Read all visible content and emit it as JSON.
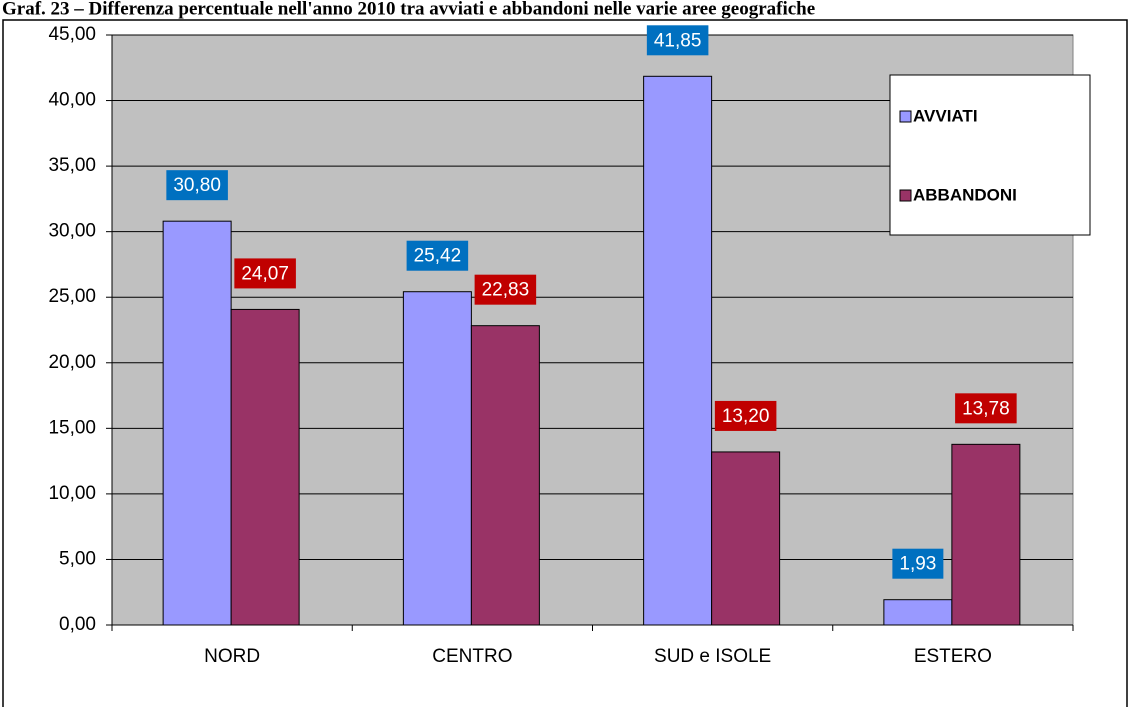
{
  "chart_data": {
    "type": "bar",
    "title": "Graf. 23 – Differenza percentuale nell'anno 2010 tra avviati e abbandoni nelle varie aree geografiche",
    "categories": [
      "NORD",
      "CENTRO",
      "SUD e ISOLE",
      "ESTERO"
    ],
    "series": [
      {
        "name": "AVVIATI",
        "color": "#9999ff",
        "label_color": "#0070c0",
        "values": [
          30.8,
          25.42,
          41.85,
          1.93
        ],
        "value_labels": [
          "30,80",
          "25,42",
          "41,85",
          "1,93"
        ]
      },
      {
        "name": "ABBANDONI",
        "color": "#993366",
        "label_color": "#c00000",
        "values": [
          24.07,
          22.83,
          13.2,
          13.78
        ],
        "value_labels": [
          "24,07",
          "22,83",
          "13,20",
          "13,78"
        ]
      }
    ],
    "ylim": [
      0,
      45
    ],
    "yticks": [
      {
        "value": 0,
        "label": "0,00"
      },
      {
        "value": 5,
        "label": "5,00"
      },
      {
        "value": 10,
        "label": "10,00"
      },
      {
        "value": 15,
        "label": "15,00"
      },
      {
        "value": 20,
        "label": "20,00"
      },
      {
        "value": 25,
        "label": "25,00"
      },
      {
        "value": 30,
        "label": "30,00"
      },
      {
        "value": 35,
        "label": "35,00"
      },
      {
        "value": 40,
        "label": "40,00"
      },
      {
        "value": 45,
        "label": "45,00"
      }
    ],
    "grid": true,
    "legend": "upper right",
    "plot_background": "#c0c0c0"
  }
}
